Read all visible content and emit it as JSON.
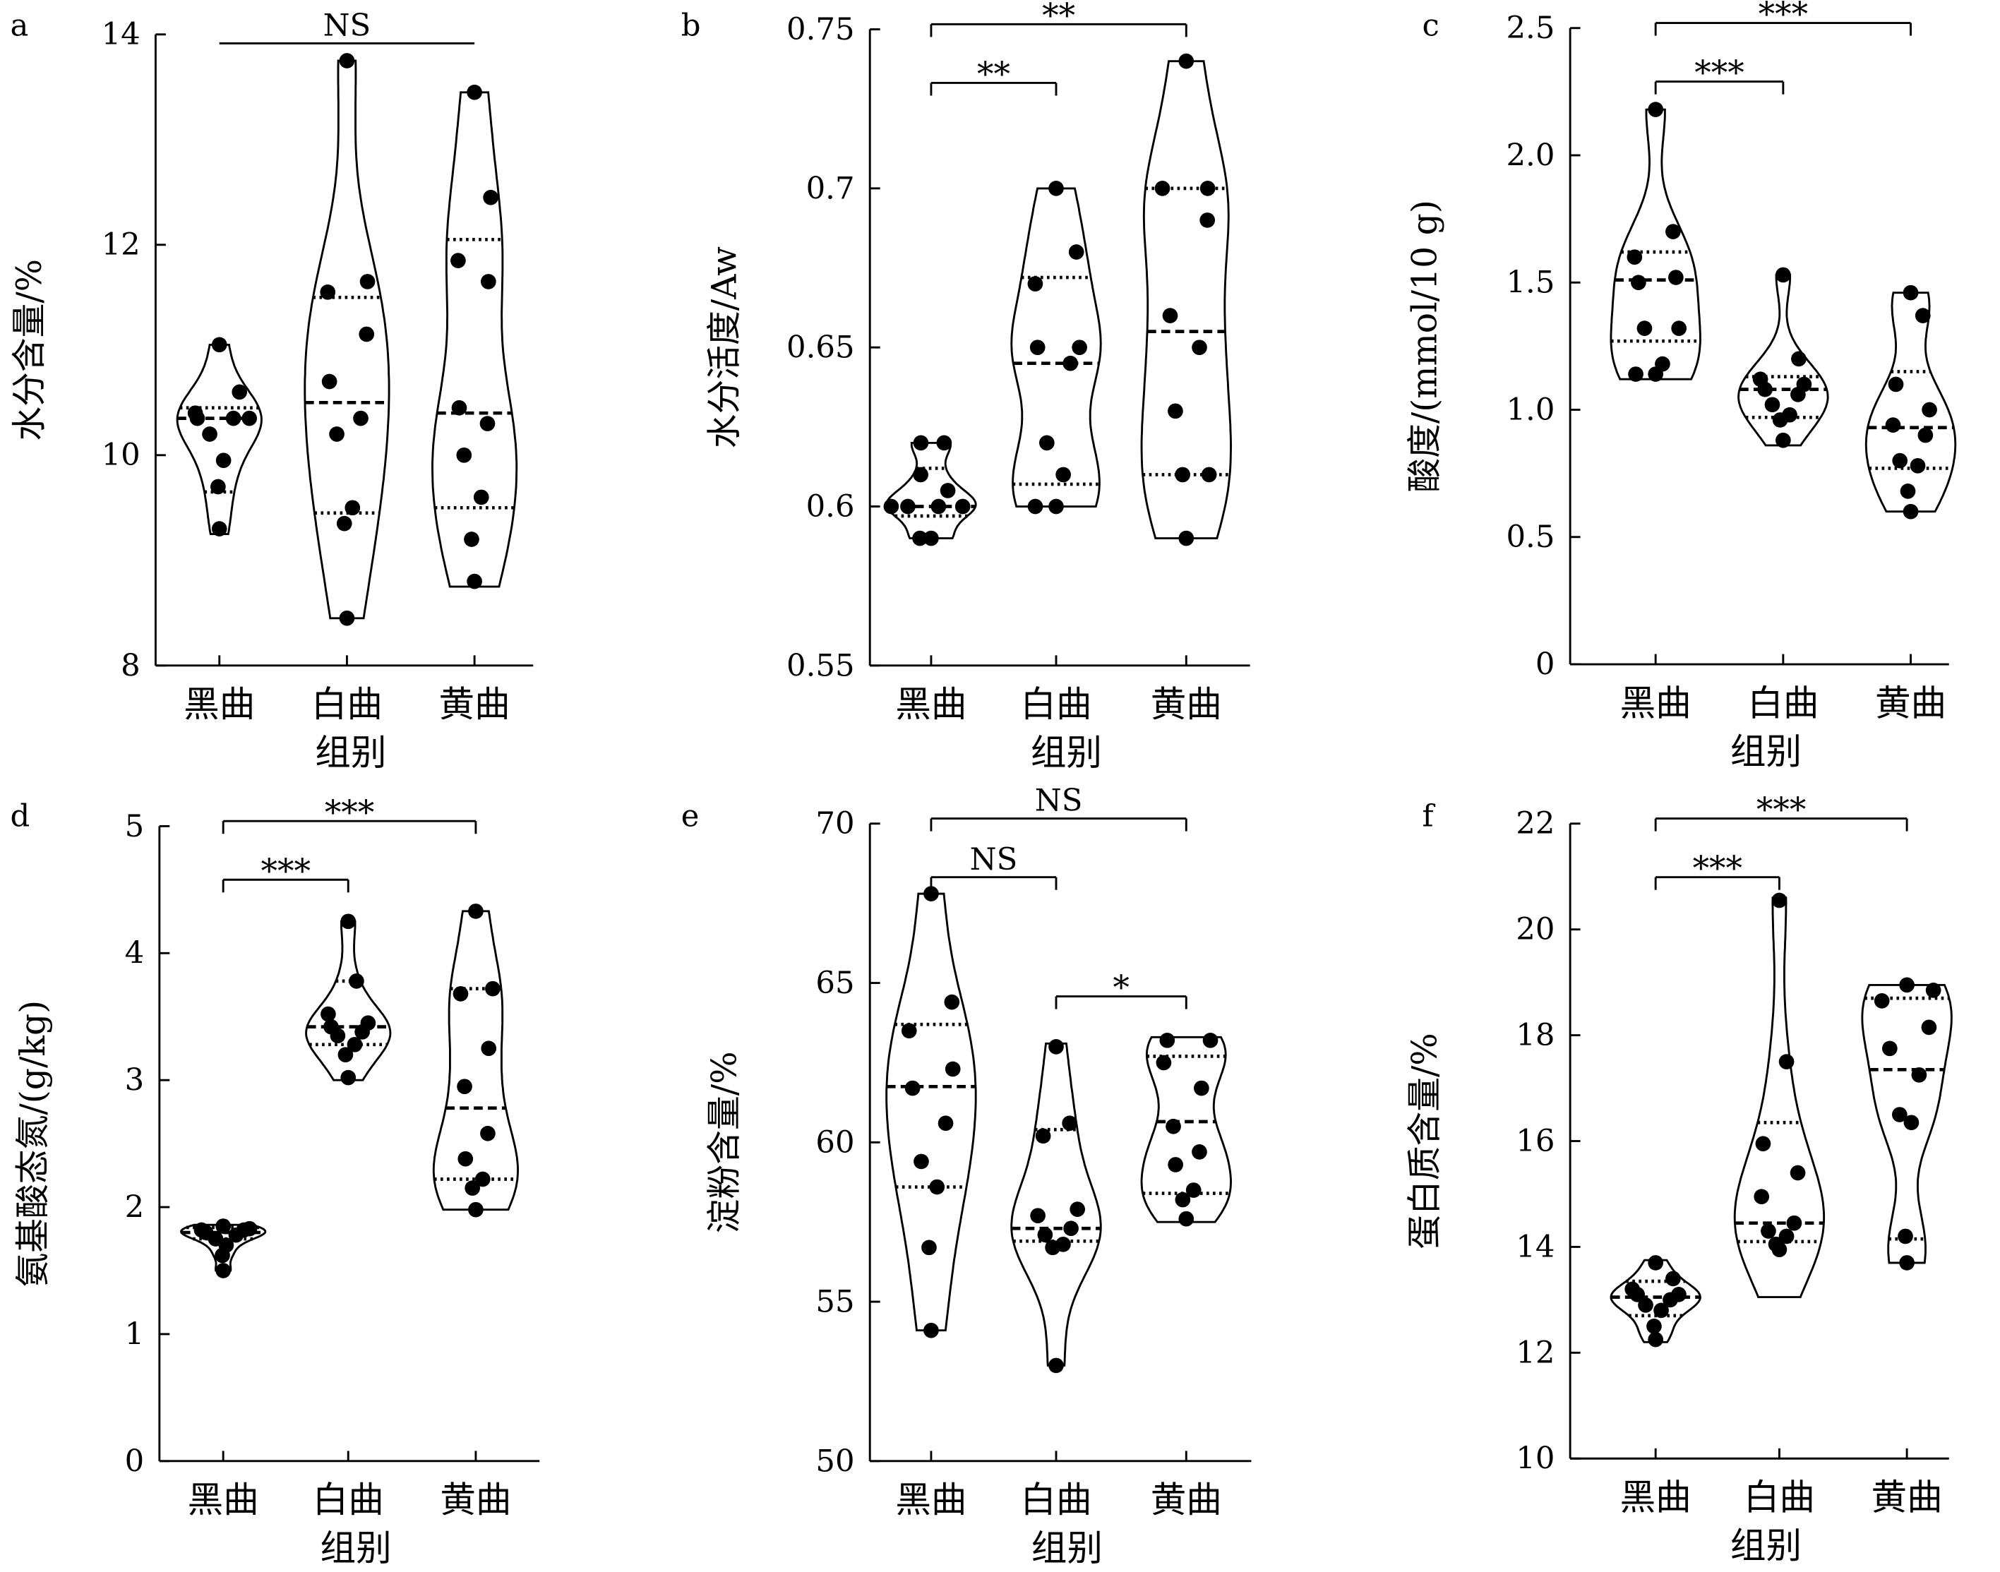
{
  "chart_data": [
    {
      "panel": "a",
      "type": "violin",
      "xlabel": "组别",
      "ylabel": "水分含量/%",
      "ylim": [
        8,
        14
      ],
      "yticks": [
        8,
        10,
        12,
        14
      ],
      "categories": [
        "黑曲",
        "白曲",
        "黄曲"
      ],
      "groups": [
        {
          "points": [
            11.05,
            10.6,
            10.4,
            10.35,
            10.35,
            10.2,
            9.95,
            9.7,
            9.3,
            10.35
          ],
          "median": 10.35,
          "q1": 9.65,
          "q3": 10.45,
          "min": 9.25,
          "max": 11.05
        },
        {
          "points": [
            13.75,
            11.65,
            11.55,
            11.15,
            10.7,
            10.35,
            10.2,
            9.5,
            9.35,
            8.45
          ],
          "median": 10.5,
          "q1": 9.45,
          "q3": 11.5,
          "min": 8.45,
          "max": 13.75
        },
        {
          "points": [
            13.45,
            12.45,
            11.85,
            11.65,
            10.45,
            10.3,
            10.0,
            9.6,
            9.2,
            8.8
          ],
          "median": 10.4,
          "q1": 9.5,
          "q3": 12.05,
          "min": 8.75,
          "max": 13.45
        }
      ],
      "comparisons": [
        {
          "from": 0,
          "to": 2,
          "label": "NS",
          "level": 1
        }
      ]
    },
    {
      "panel": "b",
      "type": "violin",
      "xlabel": "组别",
      "ylabel": "水分活度/Aw",
      "ylim": [
        0.55,
        0.75
      ],
      "yticks": [
        0.55,
        0.6,
        0.65,
        0.7,
        0.75
      ],
      "categories": [
        "黑曲",
        "白曲",
        "黄曲"
      ],
      "groups": [
        {
          "points": [
            0.62,
            0.62,
            0.61,
            0.605,
            0.6,
            0.6,
            0.6,
            0.6,
            0.59,
            0.59
          ],
          "median": 0.6,
          "q1": 0.597,
          "q3": 0.612,
          "min": 0.59,
          "max": 0.62
        },
        {
          "points": [
            0.7,
            0.68,
            0.67,
            0.65,
            0.65,
            0.645,
            0.62,
            0.61,
            0.6,
            0.6
          ],
          "median": 0.645,
          "q1": 0.607,
          "q3": 0.672,
          "min": 0.6,
          "max": 0.7
        },
        {
          "points": [
            0.74,
            0.7,
            0.7,
            0.69,
            0.66,
            0.65,
            0.63,
            0.61,
            0.61,
            0.59
          ],
          "median": 0.655,
          "q1": 0.61,
          "q3": 0.7,
          "min": 0.59,
          "max": 0.74
        }
      ],
      "comparisons": [
        {
          "from": 0,
          "to": 1,
          "label": "**",
          "level": 1
        },
        {
          "from": 0,
          "to": 2,
          "label": "**",
          "level": 2
        }
      ]
    },
    {
      "panel": "c",
      "type": "violin",
      "xlabel": "组别",
      "ylabel": "酸度/(mmol/10 g)",
      "ylim": [
        0,
        2.5
      ],
      "yticks": [
        0,
        0.5,
        1.0,
        1.5,
        2.0,
        2.5
      ],
      "ytick_labels": [
        "0",
        "0.5",
        "1.0",
        "1.5",
        "2.0",
        "2.5"
      ],
      "categories": [
        "黑曲",
        "白曲",
        "黄曲"
      ],
      "groups": [
        {
          "points": [
            2.18,
            1.7,
            1.6,
            1.52,
            1.5,
            1.32,
            1.32,
            1.18,
            1.14,
            1.14
          ],
          "median": 1.51,
          "q1": 1.27,
          "q3": 1.62,
          "min": 1.12,
          "max": 2.18
        },
        {
          "points": [
            1.53,
            1.2,
            1.12,
            1.1,
            1.08,
            1.06,
            1.02,
            0.98,
            0.96,
            0.88
          ],
          "median": 1.08,
          "q1": 0.97,
          "q3": 1.13,
          "min": 0.86,
          "max": 1.53
        },
        {
          "points": [
            1.46,
            1.37,
            1.1,
            1.0,
            0.94,
            0.9,
            0.8,
            0.78,
            0.68,
            0.6
          ],
          "median": 0.93,
          "q1": 0.77,
          "q3": 1.15,
          "min": 0.6,
          "max": 1.46
        }
      ],
      "comparisons": [
        {
          "from": 0,
          "to": 1,
          "label": "***",
          "level": 1
        },
        {
          "from": 0,
          "to": 2,
          "label": "***",
          "level": 2
        }
      ]
    },
    {
      "panel": "d",
      "type": "violin",
      "xlabel": "组别",
      "ylabel": "氨基酸态氮/(g/kg)",
      "ylim": [
        0,
        5
      ],
      "yticks": [
        0,
        1,
        2,
        3,
        4,
        5
      ],
      "categories": [
        "黑曲",
        "白曲",
        "黄曲"
      ],
      "groups": [
        {
          "points": [
            1.85,
            1.83,
            1.82,
            1.82,
            1.8,
            1.78,
            1.75,
            1.7,
            1.62,
            1.5
          ],
          "median": 1.8,
          "q1": 1.75,
          "q3": 1.84,
          "min": 1.5,
          "max": 1.86
        },
        {
          "points": [
            4.25,
            3.78,
            3.52,
            3.45,
            3.42,
            3.38,
            3.35,
            3.28,
            3.2,
            3.02
          ],
          "median": 3.42,
          "q1": 3.28,
          "q3": 3.78,
          "min": 3.0,
          "max": 4.25
        },
        {
          "points": [
            4.33,
            3.72,
            3.68,
            3.25,
            2.95,
            2.58,
            2.38,
            2.22,
            2.15,
            1.98
          ],
          "median": 2.78,
          "q1": 2.22,
          "q3": 3.72,
          "min": 1.98,
          "max": 4.33
        }
      ],
      "comparisons": [
        {
          "from": 0,
          "to": 1,
          "label": "***",
          "level": 1
        },
        {
          "from": 0,
          "to": 2,
          "label": "***",
          "level": 2
        }
      ]
    },
    {
      "panel": "e",
      "type": "violin",
      "xlabel": "组别",
      "ylabel": "淀粉含量/%",
      "ylim": [
        50,
        70
      ],
      "yticks": [
        50,
        55,
        60,
        65,
        70
      ],
      "categories": [
        "黑曲",
        "白曲",
        "黄曲"
      ],
      "groups": [
        {
          "points": [
            67.8,
            64.4,
            63.5,
            62.3,
            61.7,
            60.6,
            59.4,
            58.6,
            56.7,
            54.1
          ],
          "median": 61.75,
          "q1": 58.6,
          "q3": 63.7,
          "min": 54.1,
          "max": 67.8
        },
        {
          "points": [
            63.0,
            60.6,
            60.2,
            57.9,
            57.7,
            57.3,
            57.1,
            56.8,
            56.7,
            53.0
          ],
          "median": 57.3,
          "q1": 56.9,
          "q3": 60.4,
          "min": 53.0,
          "max": 63.1
        },
        {
          "points": [
            63.2,
            63.2,
            62.5,
            61.7,
            60.5,
            59.7,
            59.3,
            58.5,
            58.2,
            57.6
          ],
          "median": 60.65,
          "q1": 58.4,
          "q3": 62.7,
          "min": 57.5,
          "max": 63.3
        }
      ],
      "comparisons": [
        {
          "from": 0,
          "to": 1,
          "label": "NS",
          "level": 1
        },
        {
          "from": 0,
          "to": 2,
          "label": "NS",
          "level": 2
        },
        {
          "from": 1,
          "to": 2,
          "label": "*",
          "level": 0
        }
      ]
    },
    {
      "panel": "f",
      "type": "violin",
      "xlabel": "组别",
      "ylabel": "蛋白质含量/%",
      "ylim": [
        10,
        22
      ],
      "yticks": [
        10,
        12,
        14,
        16,
        18,
        20,
        22
      ],
      "categories": [
        "黑曲",
        "白曲",
        "黄曲"
      ],
      "groups": [
        {
          "points": [
            13.7,
            13.4,
            13.2,
            13.1,
            13.1,
            13.0,
            12.9,
            12.8,
            12.5,
            12.25
          ],
          "median": 13.05,
          "q1": 12.7,
          "q3": 13.35,
          "min": 12.2,
          "max": 13.75
        },
        {
          "points": [
            20.55,
            17.5,
            15.95,
            15.4,
            14.95,
            14.45,
            14.3,
            14.2,
            14.05,
            13.95
          ],
          "median": 14.45,
          "q1": 14.1,
          "q3": 16.35,
          "min": 13.05,
          "max": 20.6
        },
        {
          "points": [
            18.95,
            18.85,
            18.65,
            18.15,
            17.75,
            17.25,
            16.5,
            16.35,
            14.2,
            13.7
          ],
          "median": 17.35,
          "q1": 14.15,
          "q3": 18.7,
          "min": 13.7,
          "max": 18.95
        }
      ],
      "comparisons": [
        {
          "from": 0,
          "to": 1,
          "label": "***",
          "level": 1
        },
        {
          "from": 0,
          "to": 2,
          "label": "***",
          "level": 2
        }
      ]
    }
  ]
}
